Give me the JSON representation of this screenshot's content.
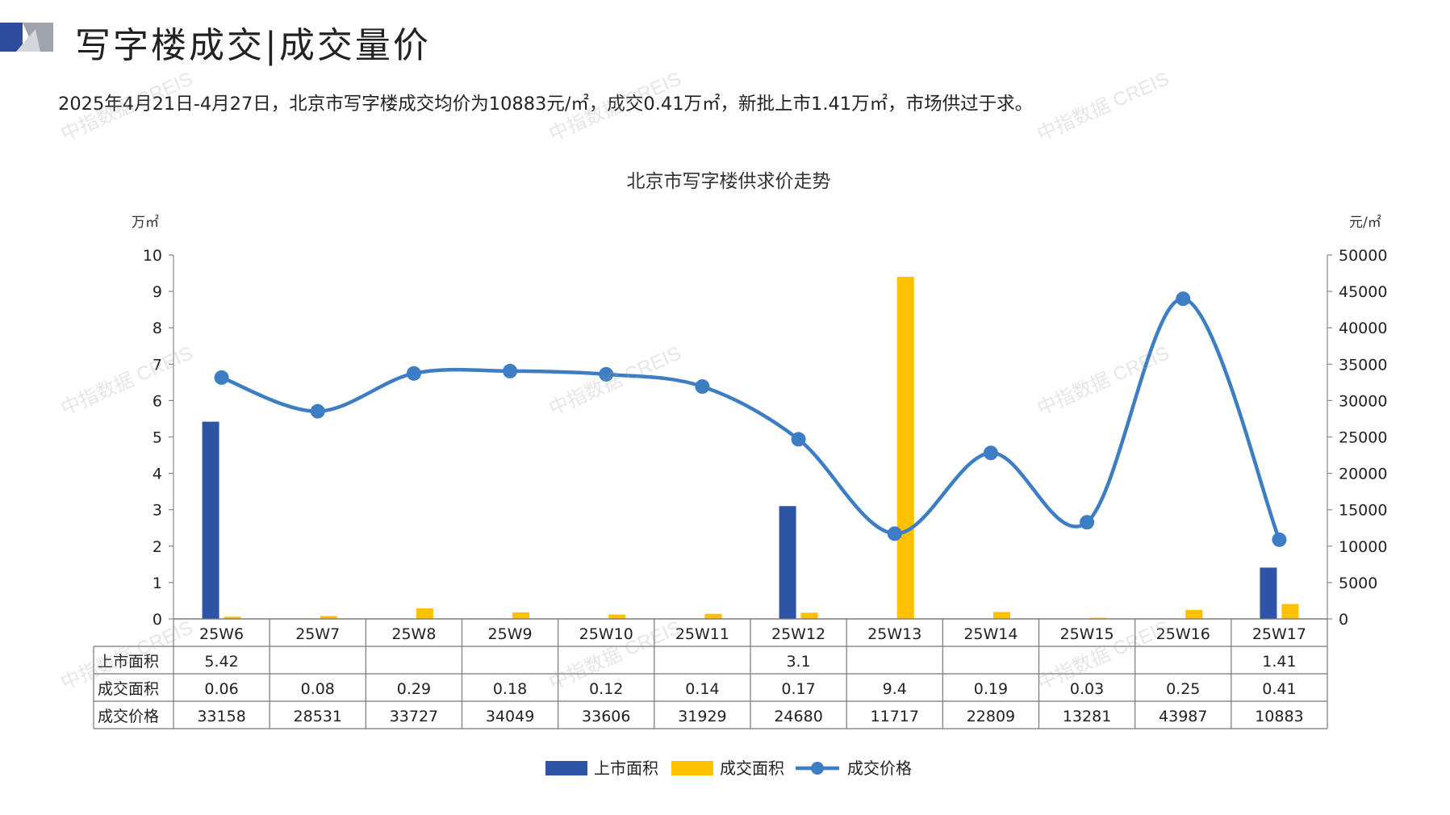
{
  "header": {
    "title": "写字楼成交|成交量价",
    "summary": "2025年4月21日-4月27日，北京市写字楼成交均价为10883元/㎡，成交0.41万㎡，新批上市1.41万㎡，市场供过于求。"
  },
  "watermark": "中指数据 CREIS",
  "colors": {
    "supply": "#2E55A5",
    "deal_area": "#FFC000",
    "price": "#3C7DC4",
    "logo_blue": "#2E4B9C",
    "logo_gray": "#8A8F99"
  },
  "chart_data": {
    "type": "bar",
    "title": "北京市写字楼供求价走势",
    "categories": [
      "25W6",
      "25W7",
      "25W8",
      "25W9",
      "25W10",
      "25W11",
      "25W12",
      "25W13",
      "25W14",
      "25W15",
      "25W16",
      "25W17"
    ],
    "left_axis": {
      "unit": "万㎡",
      "ylim": [
        0,
        10
      ],
      "ticks": [
        "0",
        "1",
        "2",
        "3",
        "4",
        "5",
        "6",
        "7",
        "8",
        "9",
        "10"
      ]
    },
    "right_axis": {
      "unit": "元/㎡",
      "ylim": [
        0,
        50000
      ],
      "ticks": [
        "0",
        "5000",
        "10000",
        "15000",
        "20000",
        "25000",
        "30000",
        "35000",
        "40000",
        "45000",
        "50000"
      ]
    },
    "series": [
      {
        "name": "上市面积",
        "type": "bar",
        "axis": "left",
        "values": [
          5.42,
          null,
          null,
          null,
          null,
          null,
          3.1,
          null,
          null,
          null,
          null,
          1.41
        ],
        "labels": [
          "5.42",
          "",
          "",
          "",
          "",
          "",
          "3.1",
          "",
          "",
          "",
          "",
          "1.41"
        ]
      },
      {
        "name": "成交面积",
        "type": "bar",
        "axis": "left",
        "values": [
          0.06,
          0.08,
          0.29,
          0.18,
          0.12,
          0.14,
          0.17,
          9.4,
          0.19,
          0.03,
          0.25,
          0.41
        ],
        "labels": [
          "0.06",
          "0.08",
          "0.29",
          "0.18",
          "0.12",
          "0.14",
          "0.17",
          "9.4",
          "0.19",
          "0.03",
          "0.25",
          "0.41"
        ]
      },
      {
        "name": "成交价格",
        "type": "line",
        "axis": "right",
        "smooth": true,
        "values": [
          33158,
          28531,
          33727,
          34049,
          33606,
          31929,
          24680,
          11717,
          22809,
          13281,
          43987,
          10883
        ],
        "labels": [
          "33158",
          "28531",
          "33727",
          "34049",
          "33606",
          "31929",
          "24680",
          "11717",
          "22809",
          "13281",
          "43987",
          "10883"
        ]
      }
    ],
    "legend": {
      "position": "bottom"
    }
  }
}
